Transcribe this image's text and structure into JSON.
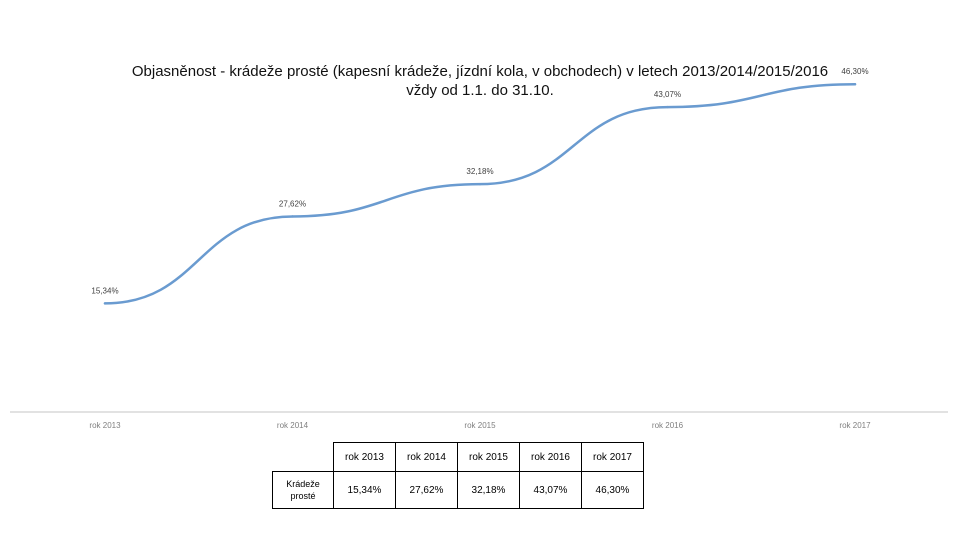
{
  "chart_data": {
    "type": "line",
    "title_lines": [
      "Objasněnost - krádeže prosté (kapesní krádeže, jízdní kola, v obchodech) v letech 2013/2014/2015/2016",
      "vždy od 1.1. do 31.10."
    ],
    "categories": [
      "rok 2013",
      "rok 2014",
      "rok 2015",
      "rok 2016",
      "rok 2017"
    ],
    "series": [
      {
        "values": [
          15.34,
          27.62,
          32.18,
          43.07,
          46.3
        ],
        "labels": [
          "15,34%",
          "27,62%",
          "32,18%",
          "43,07%",
          "46,30%"
        ],
        "color": "#6a9bd0"
      }
    ],
    "ylim": [
      0,
      50
    ],
    "grid": false,
    "legend": "none",
    "axis_color": "#d9d9d9"
  },
  "table": {
    "row_label": "Krádeže prosté",
    "columns": [
      "rok 2013",
      "rok 2014",
      "rok 2015",
      "rok 2016",
      "rok 2017"
    ],
    "values": [
      "15,34%",
      "27,62%",
      "32,18%",
      "43,07%",
      "46,30%"
    ]
  }
}
